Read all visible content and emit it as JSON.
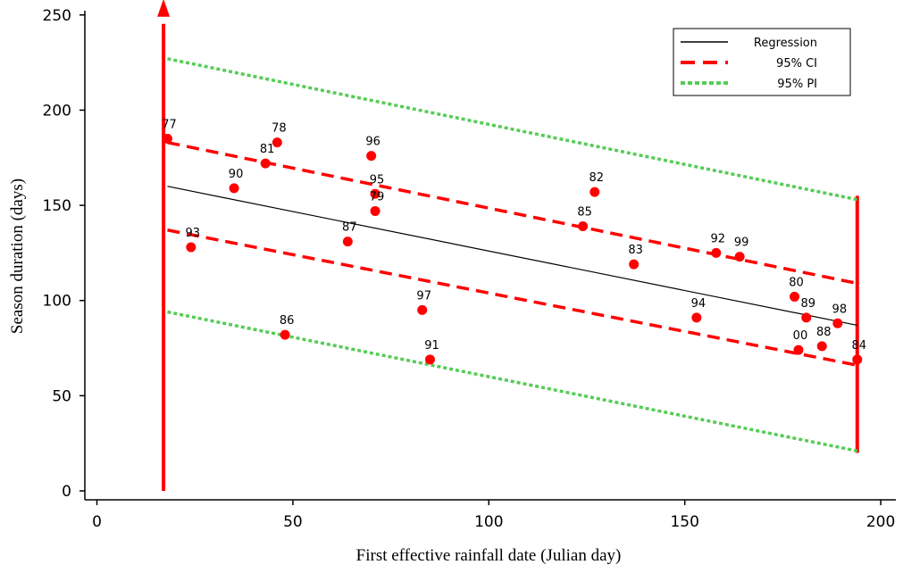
{
  "chart_data": {
    "type": "scatter",
    "title": "",
    "xlabel": "First effective rainfall date (Julian day)",
    "ylabel": "Season duration (days)",
    "xlim": [
      -5,
      205
    ],
    "ylim": [
      -5,
      255
    ],
    "xticks": [
      0,
      50,
      100,
      150,
      200
    ],
    "yticks": [
      0,
      50,
      100,
      150,
      200,
      250
    ],
    "grid": false,
    "legend_position": "top-right",
    "points": [
      {
        "label": "77",
        "x": 18,
        "y": 185
      },
      {
        "label": "78",
        "x": 46,
        "y": 183
      },
      {
        "label": "81",
        "x": 43,
        "y": 172
      },
      {
        "label": "90",
        "x": 35,
        "y": 159
      },
      {
        "label": "96",
        "x": 70,
        "y": 176
      },
      {
        "label": "95",
        "x": 71,
        "y": 156
      },
      {
        "label": "79",
        "x": 71,
        "y": 147
      },
      {
        "label": "93",
        "x": 24,
        "y": 128
      },
      {
        "label": "87",
        "x": 64,
        "y": 131
      },
      {
        "label": "86",
        "x": 48,
        "y": 82
      },
      {
        "label": "97",
        "x": 83,
        "y": 95
      },
      {
        "label": "91",
        "x": 85,
        "y": 69
      },
      {
        "label": "85",
        "x": 124,
        "y": 139
      },
      {
        "label": "82",
        "x": 127,
        "y": 157
      },
      {
        "label": "83",
        "x": 137,
        "y": 119
      },
      {
        "label": "92",
        "x": 158,
        "y": 125
      },
      {
        "label": "99",
        "x": 164,
        "y": 123
      },
      {
        "label": "94",
        "x": 153,
        "y": 91
      },
      {
        "label": "80",
        "x": 178,
        "y": 102
      },
      {
        "label": "89",
        "x": 181,
        "y": 91
      },
      {
        "label": "98",
        "x": 189,
        "y": 88
      },
      {
        "label": "00",
        "x": 179,
        "y": 74
      },
      {
        "label": "88",
        "x": 185,
        "y": 76
      },
      {
        "label": "84",
        "x": 194,
        "y": 69
      }
    ],
    "series": [
      {
        "name": "Regression",
        "style": "solid",
        "color": "#000000",
        "x": [
          18,
          194
        ],
        "y": [
          160,
          87
        ]
      },
      {
        "name": "95% CI",
        "style": "dashed",
        "color": "#ff0000",
        "x": [
          18,
          194
        ],
        "y": [
          183,
          109
        ],
        "y2": [
          137,
          66
        ]
      },
      {
        "name": "95% PI",
        "style": "dotted",
        "color": "#55cc55",
        "x": [
          18,
          194
        ],
        "y": [
          227,
          153
        ],
        "y2": [
          94,
          21
        ]
      }
    ],
    "vertical_markers": [
      {
        "x": 17,
        "y_from": 0,
        "y_to": 250,
        "arrow": true,
        "color": "#ff0000"
      },
      {
        "x": 194,
        "y_from": 20,
        "y_to": 155,
        "arrow": false,
        "color": "#ff0000"
      }
    ],
    "colors": {
      "points": "#ff0000",
      "axis": "#000000"
    }
  }
}
